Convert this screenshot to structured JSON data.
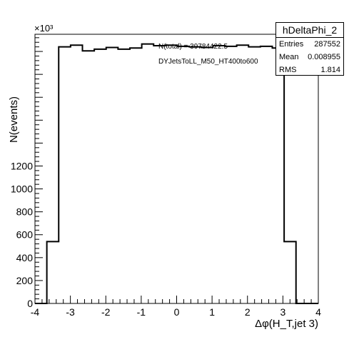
{
  "chart_data": {
    "type": "histogram",
    "title": "",
    "xlabel": "Δφ(H_T,jet 3)",
    "ylabel": "N(events)",
    "y_multiplier": "×10³",
    "xlim": [
      -4,
      4
    ],
    "ylim": [
      0,
      2350
    ],
    "x_ticks": [
      "-4",
      "-3",
      "-2",
      "-1",
      "0",
      "1",
      "2",
      "3",
      "4"
    ],
    "y_ticks": [
      "0",
      "200",
      "400",
      "600",
      "800",
      "1000",
      "1200"
    ],
    "y_tick_values": [
      0,
      200,
      400,
      600,
      800,
      1000,
      1200
    ],
    "bin_edges": [
      -4.0,
      -3.665,
      -3.33,
      -2.995,
      -2.66,
      -2.325,
      -1.99,
      -1.655,
      -1.32,
      -0.985,
      -0.65,
      -0.315,
      0.02,
      0.355,
      0.69,
      1.025,
      1.36,
      1.695,
      2.03,
      2.365,
      2.7,
      3.035,
      3.37,
      3.705,
      4.0
    ],
    "bin_values": [
      0,
      540,
      2240,
      2255,
      2205,
      2220,
      2235,
      2220,
      2230,
      2265,
      2250,
      2255,
      2245,
      2240,
      2235,
      2250,
      2245,
      2255,
      2240,
      2245,
      2230,
      540,
      0,
      0
    ],
    "line_color": "#000000",
    "annotations": [
      "N(total) = 39784422.5",
      "DYJetsToLL_M50_HT400to600"
    ]
  },
  "stats": {
    "name": "hDeltaPhi_2",
    "entries_label": "Entries",
    "entries_value": "287552",
    "mean_label": "Mean",
    "mean_value": "0.008955",
    "rms_label": "RMS",
    "rms_value": "1.814"
  }
}
